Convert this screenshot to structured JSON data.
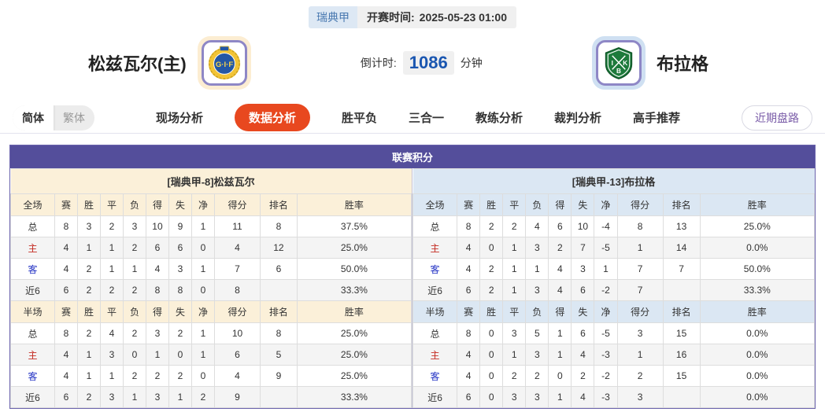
{
  "page": {
    "league_badge": "瑞典甲",
    "kickoff_label": "开赛时间:",
    "kickoff_time": "2025-05-23 01:00"
  },
  "teams": {
    "home": {
      "name": "松兹瓦尔(主)",
      "crest_text": "G·I·F"
    },
    "away": {
      "name": "布拉格",
      "crest_letters": [
        "I",
        "K",
        "B"
      ]
    }
  },
  "countdown": {
    "label": "倒计时:",
    "value": "1086",
    "unit": "分钟"
  },
  "lang_toggle": {
    "simplified": "简体",
    "traditional": "繁体"
  },
  "nav": {
    "items": [
      {
        "label": "现场分析",
        "active": false
      },
      {
        "label": "数据分析",
        "active": true
      },
      {
        "label": "胜平负",
        "active": false
      },
      {
        "label": "三合一",
        "active": false
      },
      {
        "label": "教练分析",
        "active": false
      },
      {
        "label": "裁判分析",
        "active": false
      },
      {
        "label": "高手推荐",
        "active": false
      }
    ],
    "recent_button": "近期盘路"
  },
  "standings": {
    "title": "联赛积分",
    "columns": [
      "赛",
      "胜",
      "平",
      "负",
      "得",
      "失",
      "净",
      "得分",
      "排名",
      "胜率"
    ],
    "home": {
      "team_header": "[瑞典甲-8]松兹瓦尔",
      "full": {
        "scope_header": "全场",
        "rows": [
          {
            "label": "总",
            "type": "total",
            "values": [
              "8",
              "3",
              "2",
              "3",
              "10",
              "9",
              "1",
              "11",
              "8",
              "37.5%"
            ]
          },
          {
            "label": "主",
            "type": "home",
            "values": [
              "4",
              "1",
              "1",
              "2",
              "6",
              "6",
              "0",
              "4",
              "12",
              "25.0%"
            ]
          },
          {
            "label": "客",
            "type": "away",
            "values": [
              "4",
              "2",
              "1",
              "1",
              "4",
              "3",
              "1",
              "7",
              "6",
              "50.0%"
            ]
          },
          {
            "label": "近6",
            "type": "recent",
            "values": [
              "6",
              "2",
              "2",
              "2",
              "8",
              "8",
              "0",
              "8",
              "",
              "33.3%"
            ]
          }
        ]
      },
      "half": {
        "scope_header": "半场",
        "rows": [
          {
            "label": "总",
            "type": "total",
            "values": [
              "8",
              "2",
              "4",
              "2",
              "3",
              "2",
              "1",
              "10",
              "8",
              "25.0%"
            ]
          },
          {
            "label": "主",
            "type": "home",
            "values": [
              "4",
              "1",
              "3",
              "0",
              "1",
              "0",
              "1",
              "6",
              "5",
              "25.0%"
            ]
          },
          {
            "label": "客",
            "type": "away",
            "values": [
              "4",
              "1",
              "1",
              "2",
              "2",
              "2",
              "0",
              "4",
              "9",
              "25.0%"
            ]
          },
          {
            "label": "近6",
            "type": "recent",
            "values": [
              "6",
              "2",
              "3",
              "1",
              "3",
              "1",
              "2",
              "9",
              "",
              "33.3%"
            ]
          }
        ]
      }
    },
    "away": {
      "team_header": "[瑞典甲-13]布拉格",
      "full": {
        "scope_header": "全场",
        "rows": [
          {
            "label": "总",
            "type": "total",
            "values": [
              "8",
              "2",
              "2",
              "4",
              "6",
              "10",
              "-4",
              "8",
              "13",
              "25.0%"
            ]
          },
          {
            "label": "主",
            "type": "home",
            "values": [
              "4",
              "0",
              "1",
              "3",
              "2",
              "7",
              "-5",
              "1",
              "14",
              "0.0%"
            ]
          },
          {
            "label": "客",
            "type": "away",
            "values": [
              "4",
              "2",
              "1",
              "1",
              "4",
              "3",
              "1",
              "7",
              "7",
              "50.0%"
            ]
          },
          {
            "label": "近6",
            "type": "recent",
            "values": [
              "6",
              "2",
              "1",
              "3",
              "4",
              "6",
              "-2",
              "7",
              "",
              "33.3%"
            ]
          }
        ]
      },
      "half": {
        "scope_header": "半场",
        "rows": [
          {
            "label": "总",
            "type": "total",
            "values": [
              "8",
              "0",
              "3",
              "5",
              "1",
              "6",
              "-5",
              "3",
              "15",
              "0.0%"
            ]
          },
          {
            "label": "主",
            "type": "home",
            "values": [
              "4",
              "0",
              "1",
              "3",
              "1",
              "4",
              "-3",
              "1",
              "16",
              "0.0%"
            ]
          },
          {
            "label": "客",
            "type": "away",
            "values": [
              "4",
              "0",
              "2",
              "2",
              "0",
              "2",
              "-2",
              "2",
              "15",
              "0.0%"
            ]
          },
          {
            "label": "近6",
            "type": "recent",
            "values": [
              "6",
              "0",
              "3",
              "3",
              "1",
              "4",
              "-3",
              "3",
              "",
              "0.0%"
            ]
          }
        ]
      }
    }
  },
  "colors": {
    "accent_purple": "#544e9b",
    "home_tint": "#fbf0d9",
    "away_tint": "#dbe7f3",
    "active_nav": "#e8481f",
    "countdown_blue": "#1a56b0",
    "home_row_label": "#c42b22",
    "away_row_label": "#2332c4"
  }
}
